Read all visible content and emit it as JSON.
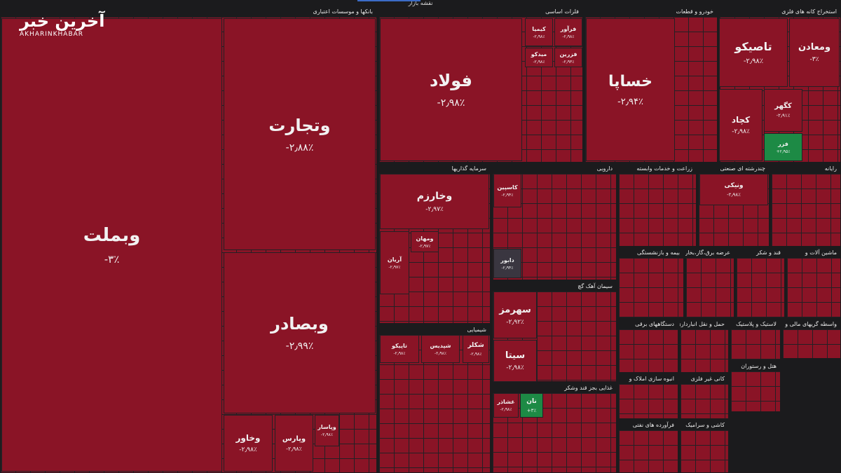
{
  "header": {
    "title": "نقشه بازار",
    "logo": "آخرین خبر",
    "logo_sub": "AKHARINKHABAR"
  },
  "sectors": [
    {
      "name": "بانکها و موسسات اعتباری",
      "tiles": [
        {
          "name": "وبملت",
          "change": "-۳٪"
        },
        {
          "name": "وتجارت",
          "change": "-۲٫۸۸٪"
        },
        {
          "name": "وبصادر",
          "change": "-۲٫۹۹٪"
        },
        {
          "name": "وخاور",
          "change": "-۲٫۹۸٪"
        },
        {
          "name": "وپارس",
          "change": "-۲٫۹۸٪"
        },
        {
          "name": "وپاسار",
          "change": "-۲٫۹۸٪"
        }
      ]
    },
    {
      "name": "فلزات اساسی",
      "tiles": [
        {
          "name": "فولاد",
          "change": "-۲٫۹۸٪"
        },
        {
          "name": "کیمیا",
          "change": "-۲٫۹۸٪"
        },
        {
          "name": "فرآور",
          "change": "-۲٫۹۸٪"
        },
        {
          "name": "میدکو",
          "change": "-۲٫۹۸٪"
        },
        {
          "name": "فزرین",
          "change": "-۲٫۹۳٪"
        }
      ]
    },
    {
      "name": "خودرو و قطعات",
      "tiles": [
        {
          "name": "خساپا",
          "change": "-۲٫۹۴٪"
        }
      ]
    },
    {
      "name": "استخراج کانه های فلزی",
      "tiles": [
        {
          "name": "تاصیکو",
          "change": "-۲٫۹۸٪"
        },
        {
          "name": "ومعادن",
          "change": "-۳٪"
        },
        {
          "name": "کچاد",
          "change": "-۲٫۹۸٪"
        },
        {
          "name": "کگهر",
          "change": "-۲٫۹۱٪"
        },
        {
          "name": "فزر",
          "change": "+۲٫۹۵٪"
        }
      ]
    },
    {
      "name": "سرمایه گذاریها",
      "tiles": [
        {
          "name": "وخارزم",
          "change": "-۲٫۹۷٪"
        },
        {
          "name": "آریان",
          "change": "-۲٫۹۷٪"
        },
        {
          "name": "ومهان",
          "change": "-۲٫۹۷٪"
        }
      ]
    },
    {
      "name": "دارویی",
      "tiles": [
        {
          "name": "کاسپین",
          "change": "-۲٫۹۴٪"
        },
        {
          "name": "دابور",
          "change": "-۲٫۹۴٪"
        }
      ]
    },
    {
      "name": "سیمان آهک گچ",
      "tiles": [
        {
          "name": "سهرمز",
          "change": "-۲٫۹۲٪"
        },
        {
          "name": "سیتا",
          "change": "-۲٫۹۸٪"
        }
      ]
    },
    {
      "name": "شیمیایی",
      "tiles": [
        {
          "name": "تاپیکو",
          "change": "-۲٫۹۸٪"
        },
        {
          "name": "شپدیس",
          "change": "-۲٫۹۸٪"
        },
        {
          "name": "شکلر",
          "change": "-۲٫۹۸٪"
        }
      ]
    },
    {
      "name": "غذایی بجز قند وشکر",
      "tiles": [
        {
          "name": "غشاذر",
          "change": "-۲٫۹۸٪"
        },
        {
          "name": "نان",
          "change": "+۳٪"
        }
      ]
    },
    {
      "name": "زراعت و خدمات وابسته",
      "tiles": []
    },
    {
      "name": "چندرشته ای صنعتی",
      "tiles": [
        {
          "name": "ونیکی",
          "change": "-۲٫۹۸٪"
        }
      ]
    },
    {
      "name": "رایانه",
      "tiles": []
    },
    {
      "name": "بیمه و بازنشستگی",
      "tiles": []
    },
    {
      "name": "عرضه برق،گاز،بخار و آب",
      "tiles": []
    },
    {
      "name": "قند و شکر",
      "tiles": []
    },
    {
      "name": "ماشین آلات و",
      "tiles": []
    },
    {
      "name": "دستگاههای برقی",
      "tiles": []
    },
    {
      "name": "حمل و نقل انبارداری",
      "tiles": []
    },
    {
      "name": "لاستیک و پلاستیک",
      "tiles": []
    },
    {
      "name": "واسطه گریهای مالی و",
      "tiles": []
    },
    {
      "name": "انبوه سازی املاک و",
      "tiles": []
    },
    {
      "name": "کانی غیر فلزی",
      "tiles": []
    },
    {
      "name": "فرآورده های نفتی",
      "tiles": []
    },
    {
      "name": "کاشی و سرامیک",
      "tiles": []
    },
    {
      "name": "هتل و رستوران",
      "tiles": []
    }
  ]
}
